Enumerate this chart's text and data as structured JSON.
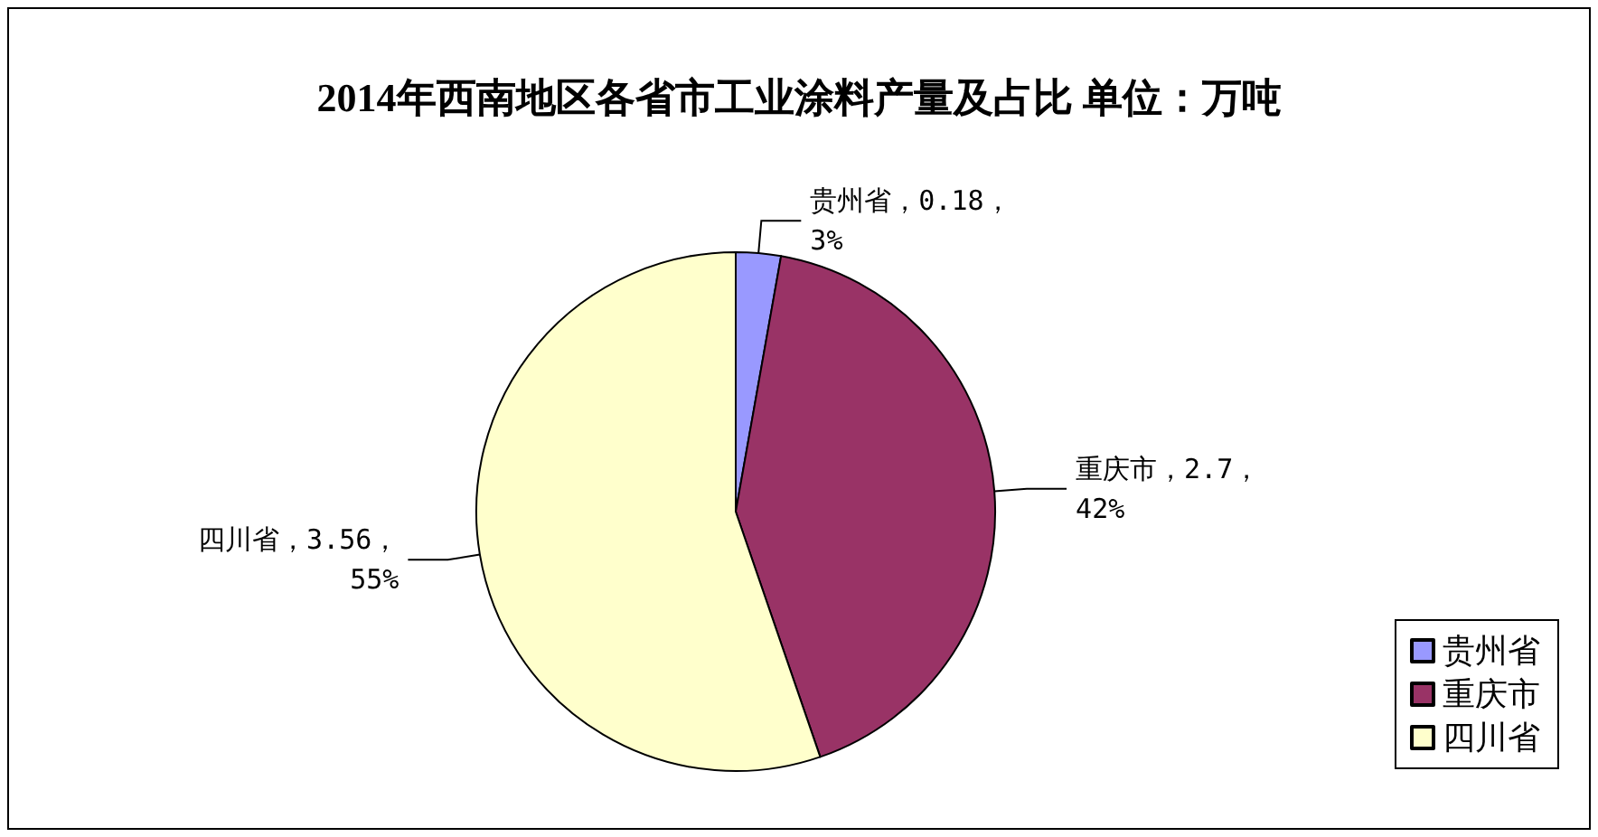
{
  "chart_data": {
    "type": "pie",
    "title": "2014年西南地区各省市工业涂料产量及占比 单位：万吨",
    "categories": [
      "贵州省",
      "重庆市",
      "四川省"
    ],
    "values": [
      0.18,
      2.7,
      3.56
    ],
    "value_labels": [
      "贵州省，0.18，\n3%",
      "重庆市，2.7，\n42%",
      "四川省，3.56，\n55%"
    ],
    "colors": [
      "#9999ff",
      "#993366",
      "#ffffcc"
    ],
    "legend": "bottom right"
  }
}
